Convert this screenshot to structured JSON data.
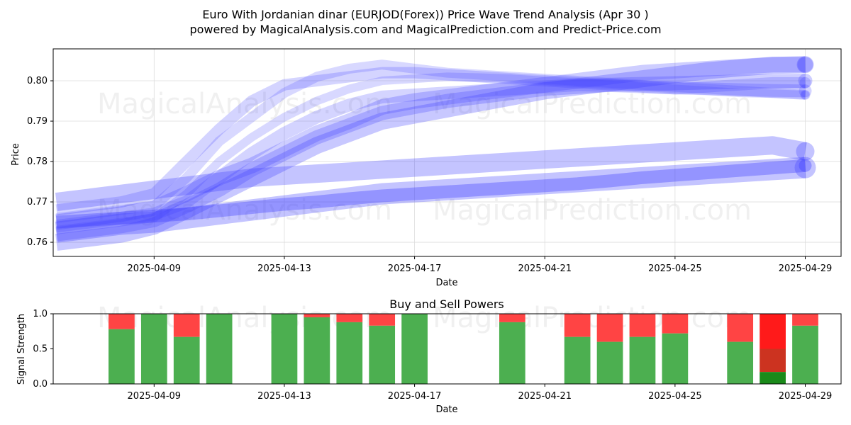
{
  "title": {
    "line1": "Euro With Jordanian dinar (EURJOD(Forex)) Price Wave Trend Analysis (Apr 30 )",
    "line2": "powered by MagicalAnalysis.com and MagicalPrediction.com and Predict-Price.com"
  },
  "watermarks": [
    "MagicalAnalysis.com",
    "MagicalPrediction.com"
  ],
  "colors": {
    "wave": "#3b3bff",
    "buy": "#4caf50",
    "sell": "#ff4444",
    "buy_strong": "#1a8a1a",
    "sell_strong": "#ff1a1a",
    "sell_mid": "#cc3320"
  },
  "chart_data": [
    {
      "type": "line",
      "title": "",
      "xlabel": "Date",
      "ylabel": "Price",
      "ylim": [
        0.7565,
        0.8079
      ],
      "x_range_days": [
        -3.1,
        21.1
      ],
      "x_origin": "2025-04-09",
      "xticks": [
        "2025-04-09",
        "2025-04-13",
        "2025-04-17",
        "2025-04-21",
        "2025-04-25",
        "2025-04-29"
      ],
      "yticks": [
        "0.76",
        "0.77",
        "0.78",
        "0.79",
        "0.80"
      ],
      "grid": true,
      "x_days": [
        -3,
        -2,
        -1,
        0,
        1,
        2,
        3,
        4,
        5,
        6,
        7,
        8,
        9,
        10,
        11,
        12,
        13,
        14,
        15,
        16,
        17,
        18,
        19,
        20
      ],
      "series": [
        {
          "name": "wave-1",
          "width": 30,
          "opacity": 0.3,
          "values": [
            0.7625,
            0.7635,
            0.7645,
            0.765,
            0.766,
            0.767,
            0.768,
            0.769,
            0.77,
            0.771,
            0.772,
            0.7725,
            0.773,
            0.7735,
            0.774,
            0.7745,
            0.775,
            0.7755,
            0.776,
            0.7765,
            0.777,
            0.7775,
            0.778,
            0.7785
          ]
        },
        {
          "name": "wave-2",
          "width": 18,
          "opacity": 0.35,
          "values": [
            0.765,
            0.7655,
            0.766,
            0.7665,
            0.767,
            0.7678,
            0.7686,
            0.7694,
            0.77,
            0.7708,
            0.7715,
            0.772,
            0.7725,
            0.773,
            0.7735,
            0.774,
            0.7745,
            0.7752,
            0.776,
            0.7766,
            0.7772,
            0.7778,
            0.7784,
            0.779
          ]
        },
        {
          "name": "wave-3",
          "width": 26,
          "opacity": 0.3,
          "values": [
            0.77,
            0.771,
            0.772,
            0.773,
            0.774,
            0.775,
            0.776,
            0.7765,
            0.777,
            0.7775,
            0.778,
            0.7785,
            0.779,
            0.7795,
            0.78,
            0.7805,
            0.781,
            0.7815,
            0.782,
            0.7825,
            0.783,
            0.7835,
            0.784,
            0.7825
          ]
        },
        {
          "name": "wave-4",
          "width": 22,
          "opacity": 0.25,
          "values": [
            0.765,
            0.766,
            0.767,
            0.7685,
            0.772,
            0.776,
            0.779,
            0.783,
            0.787,
            0.79,
            0.7935,
            0.795,
            0.796,
            0.797,
            0.798,
            0.799,
            0.8,
            0.801,
            0.802,
            0.8025,
            0.803,
            0.8035,
            0.804,
            0.804
          ]
        },
        {
          "name": "wave-5",
          "width": 16,
          "opacity": 0.22,
          "values": [
            0.768,
            0.769,
            0.77,
            0.772,
            0.78,
            0.788,
            0.795,
            0.799,
            0.8,
            0.801,
            0.802,
            0.802,
            0.8015,
            0.801,
            0.8005,
            0.8,
            0.7995,
            0.799,
            0.7985,
            0.798,
            0.7985,
            0.799,
            0.7995,
            0.7995
          ]
        },
        {
          "name": "wave-6",
          "width": 14,
          "opacity": 0.2,
          "values": [
            0.766,
            0.767,
            0.768,
            0.769,
            0.776,
            0.785,
            0.791,
            0.797,
            0.801,
            0.803,
            0.804,
            0.803,
            0.802,
            0.8015,
            0.801,
            0.8005,
            0.8,
            0.7995,
            0.799,
            0.7985,
            0.798,
            0.7975,
            0.797,
            0.7965
          ]
        },
        {
          "name": "wave-7",
          "width": 18,
          "opacity": 0.22,
          "values": [
            0.764,
            0.765,
            0.766,
            0.767,
            0.77,
            0.776,
            0.782,
            0.787,
            0.791,
            0.794,
            0.796,
            0.7965,
            0.797,
            0.7975,
            0.798,
            0.7985,
            0.799,
            0.7988,
            0.7985,
            0.7982,
            0.798,
            0.7978,
            0.7976,
            0.7975
          ]
        },
        {
          "name": "wave-8",
          "width": 12,
          "opacity": 0.2,
          "values": [
            0.763,
            0.764,
            0.765,
            0.766,
            0.772,
            0.78,
            0.786,
            0.791,
            0.795,
            0.798,
            0.8,
            0.8005,
            0.801,
            0.8008,
            0.8005,
            0.8,
            0.7995,
            0.799,
            0.7985,
            0.798,
            0.7975,
            0.797,
            0.7968,
            0.7965
          ]
        },
        {
          "name": "wave-9",
          "width": 20,
          "opacity": 0.25,
          "values": [
            0.762,
            0.763,
            0.764,
            0.7655,
            0.769,
            0.773,
            0.778,
            0.782,
            0.786,
            0.789,
            0.792,
            0.7935,
            0.795,
            0.796,
            0.797,
            0.798,
            0.7985,
            0.799,
            0.7992,
            0.7994,
            0.7996,
            0.7998,
            0.7999,
            0.8
          ]
        },
        {
          "name": "wave-10",
          "width": 24,
          "opacity": 0.28,
          "values": [
            0.76,
            0.761,
            0.762,
            0.764,
            0.768,
            0.772,
            0.776,
            0.78,
            0.784,
            0.787,
            0.79,
            0.7915,
            0.793,
            0.7945,
            0.796,
            0.7975,
            0.7985,
            0.7995,
            0.8005,
            0.8015,
            0.8025,
            0.8032,
            0.8038,
            0.804
          ]
        }
      ]
    },
    {
      "type": "bar",
      "title": "Buy and Sell Powers",
      "xlabel": "Date",
      "ylabel": "Signal Strength",
      "ylim": [
        0.0,
        1.0
      ],
      "x_range_days": [
        -3.1,
        21.1
      ],
      "xticks": [
        "2025-04-09",
        "2025-04-13",
        "2025-04-17",
        "2025-04-21",
        "2025-04-25",
        "2025-04-29"
      ],
      "yticks": [
        "0.0",
        "0.5",
        "1.0"
      ],
      "bars": [
        {
          "day": -1,
          "buy": 0.78
        },
        {
          "day": 0,
          "buy": 1.0
        },
        {
          "day": 1,
          "buy": 0.67
        },
        {
          "day": 2,
          "buy": 1.0
        },
        {
          "day": 4,
          "buy": 1.0
        },
        {
          "day": 5,
          "buy": 0.95
        },
        {
          "day": 6,
          "buy": 0.88
        },
        {
          "day": 7,
          "buy": 0.83
        },
        {
          "day": 8,
          "buy": 1.0
        },
        {
          "day": 11,
          "buy": 0.88
        },
        {
          "day": 13,
          "buy": 0.67
        },
        {
          "day": 14,
          "buy": 0.6
        },
        {
          "day": 15,
          "buy": 0.67
        },
        {
          "day": 16,
          "buy": 0.72
        },
        {
          "day": 18,
          "buy": 0.6
        },
        {
          "day": 19,
          "buy": 0.17,
          "strong": true
        },
        {
          "day": 20,
          "buy": 0.83
        }
      ]
    }
  ]
}
